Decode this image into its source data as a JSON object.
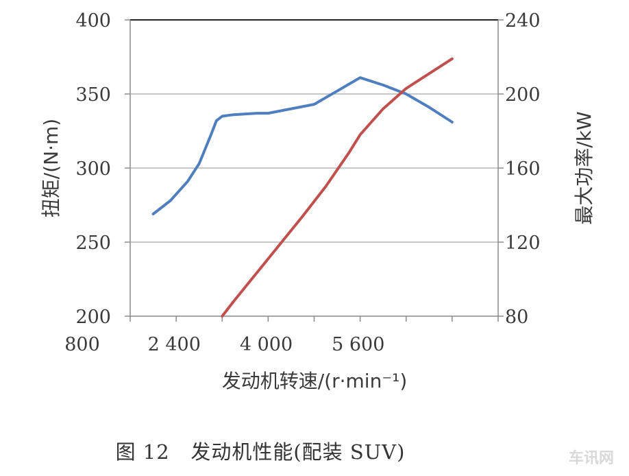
{
  "chart_data": {
    "type": "line",
    "xlabel": "发动机转速/(r·min⁻¹)",
    "ylabel_left": "扭矩/(N·m)",
    "ylabel_right": "最大功率/kW",
    "xlim": [
      800,
      7200
    ],
    "ylim_left": [
      200,
      400
    ],
    "ylim_right": [
      80,
      240
    ],
    "x_ticks": [
      800,
      2400,
      4000,
      5600
    ],
    "x_tick_labels": [
      "800",
      "2 400",
      "4 000",
      "5 600"
    ],
    "y_left_ticks": [
      200,
      250,
      300,
      350,
      400
    ],
    "y_right_ticks": [
      80,
      120,
      160,
      200,
      240
    ],
    "grid": true,
    "series": [
      {
        "axis": "left",
        "color": "#4f7fbf",
        "x": [
          1200,
          1500,
          1800,
          2000,
          2200,
          2300,
          2400,
          2600,
          3000,
          3200,
          3600,
          4000,
          4400,
          4800,
          5200,
          5600,
          6000,
          6400
        ],
        "y": [
          269,
          278,
          291,
          303,
          322,
          332,
          335,
          336,
          337,
          337,
          340,
          343,
          352,
          361,
          356,
          350,
          341,
          331
        ]
      },
      {
        "axis": "right",
        "color": "#c0504d",
        "x": [
          2400,
          2600,
          3200,
          3800,
          4200,
          4600,
          4800,
          5200,
          5600,
          6000,
          6400
        ],
        "y": [
          80,
          88,
          111,
          134,
          150,
          168,
          178,
          192,
          203,
          211,
          219
        ]
      }
    ]
  },
  "caption": "图 12   发动机性能(配装 SUV)",
  "watermark": "车讯网"
}
